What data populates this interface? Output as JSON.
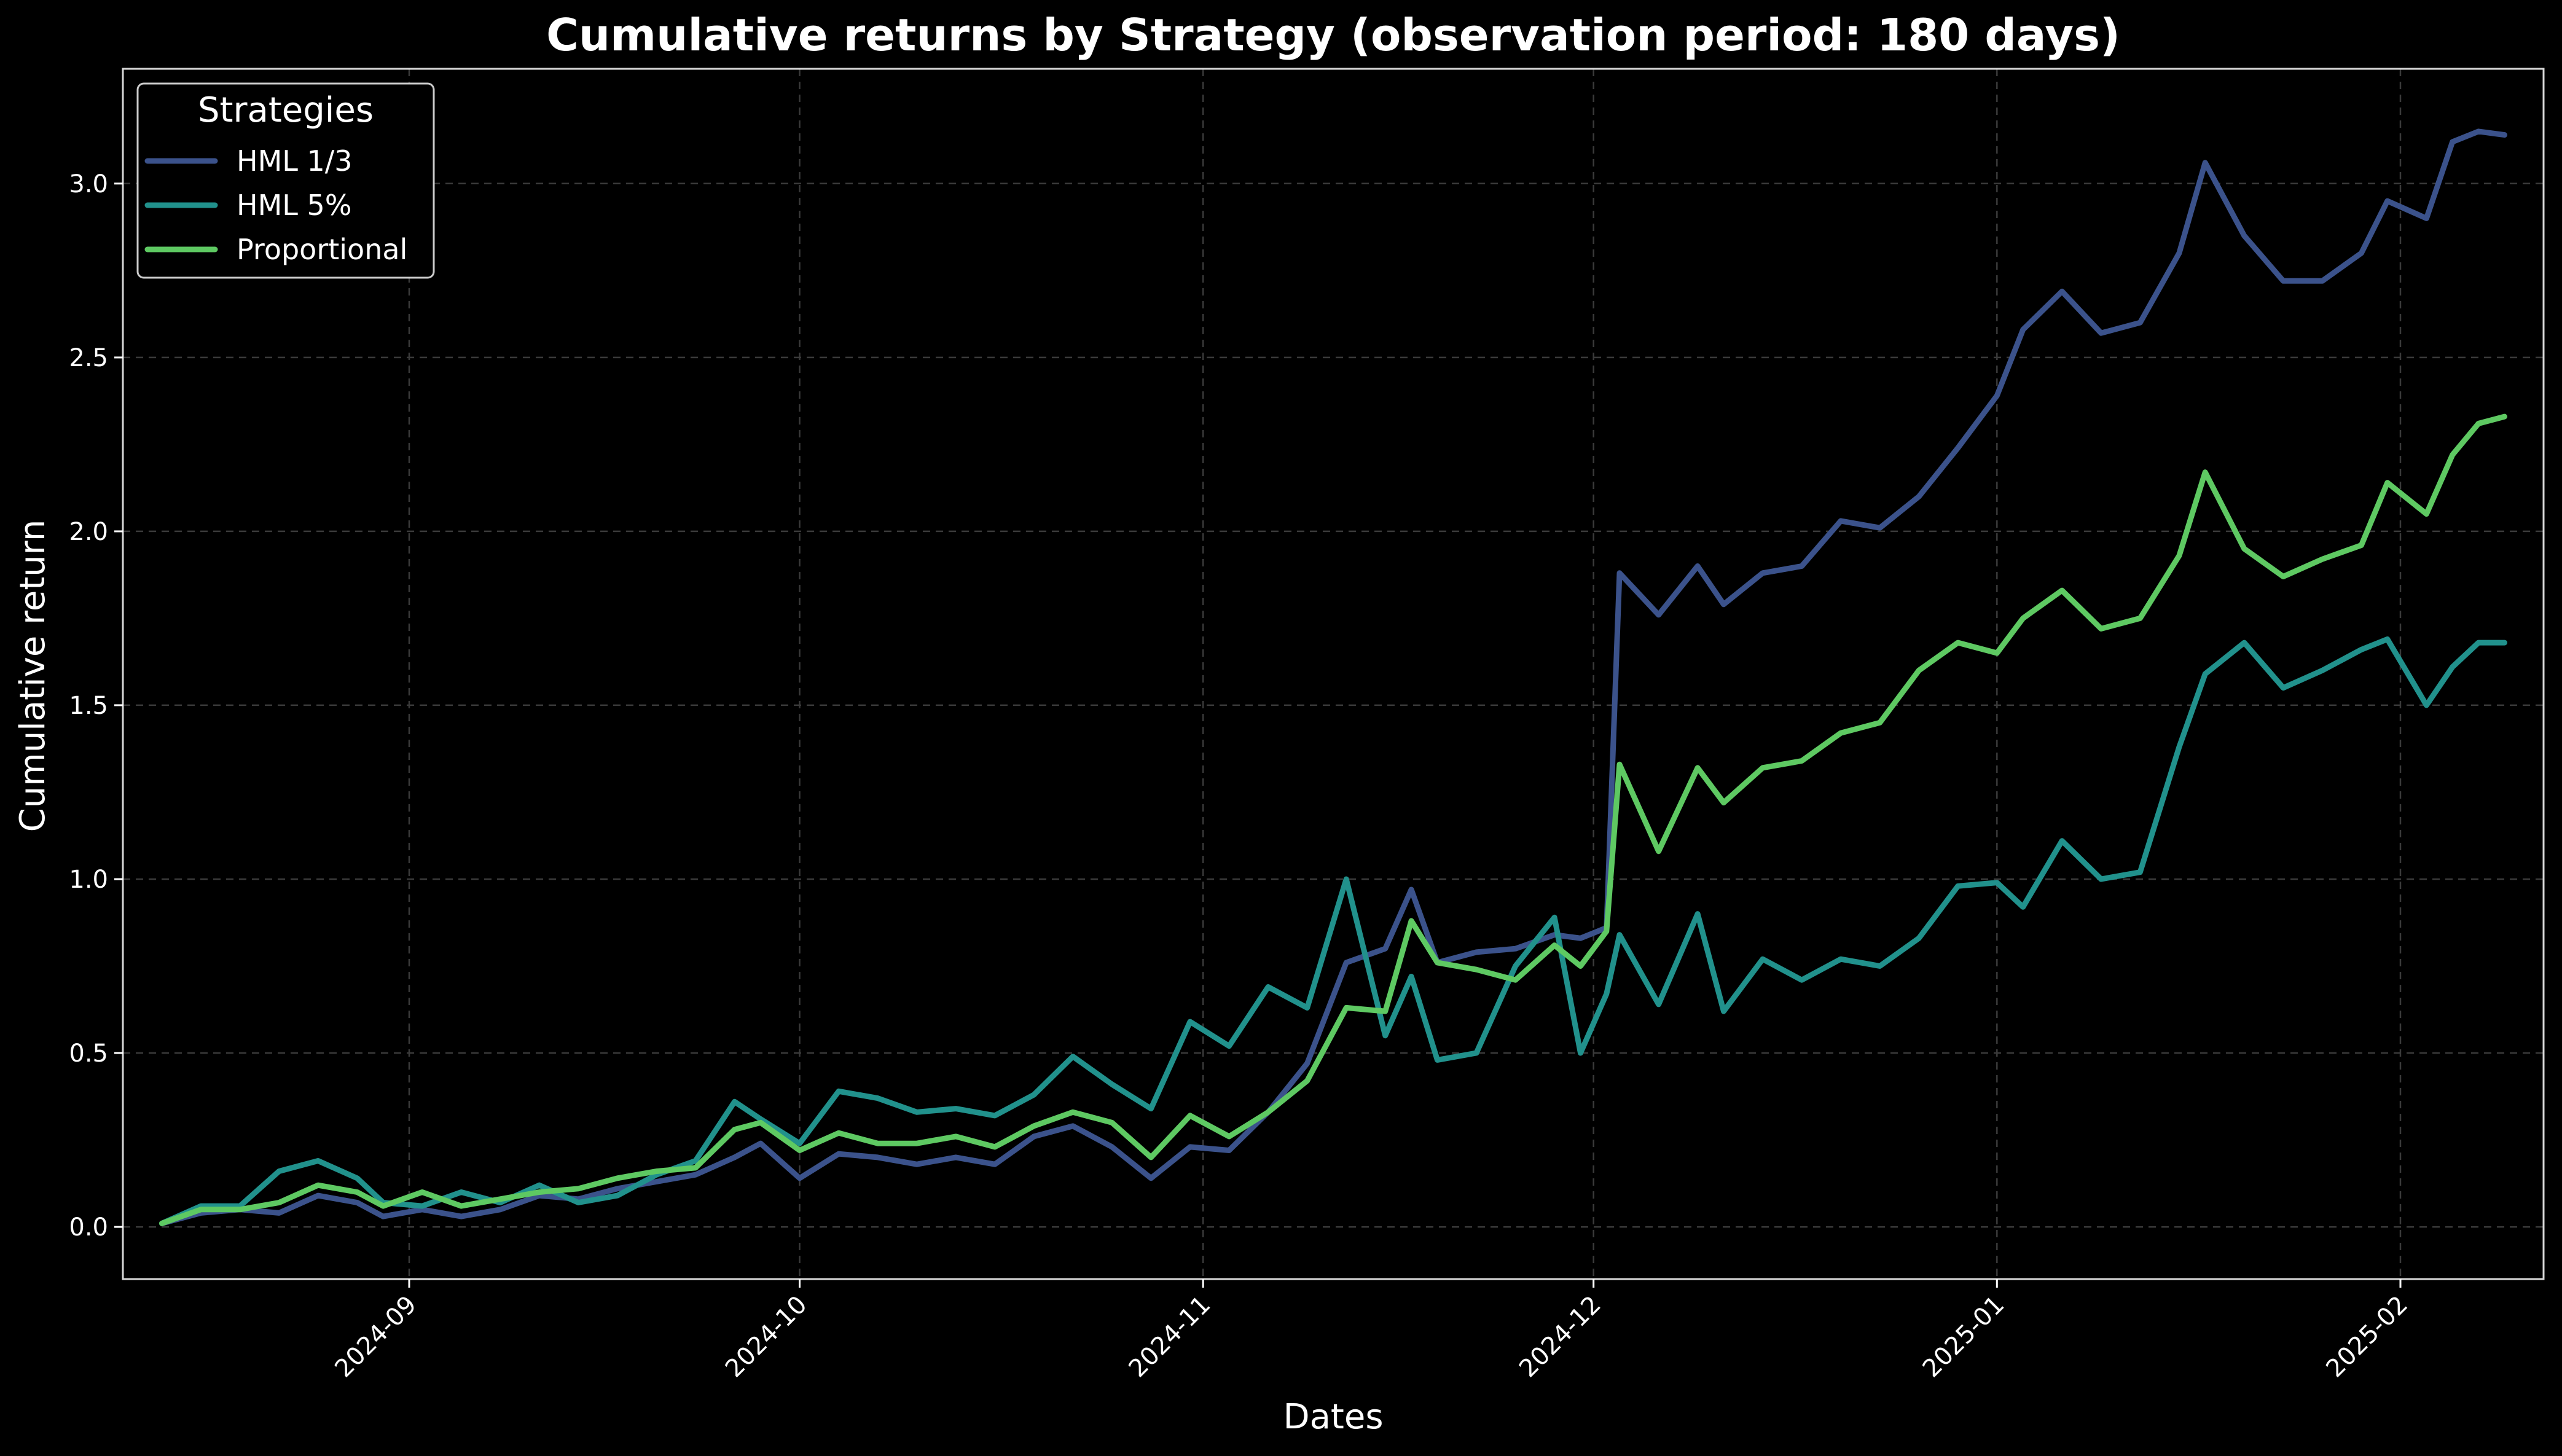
{
  "chart_data": {
    "type": "line",
    "title": "Cumulative returns by Strategy (observation period: 180 days)",
    "xlabel": "Dates",
    "ylabel": "Cumulative return",
    "x_range": [
      "2024-08-10",
      "2025-02-12"
    ],
    "ylim": [
      -0.15,
      3.33
    ],
    "grid": true,
    "legend": {
      "title": "Strategies",
      "placement": "top-left"
    },
    "x_ticks": [
      "2024-09-01",
      "2024-10-01",
      "2024-11-01",
      "2024-12-01",
      "2025-01-01",
      "2025-02-01"
    ],
    "x_tick_labels": [
      "2024-09",
      "2024-10",
      "2024-11",
      "2024-12",
      "2025-01",
      "2025-02"
    ],
    "y_ticks": [
      0.0,
      0.5,
      1.0,
      1.5,
      2.0,
      2.5,
      3.0
    ],
    "y_tick_labels": [
      "0.0",
      "0.5",
      "1.0",
      "1.5",
      "2.0",
      "2.5",
      "3.0"
    ],
    "series": [
      {
        "name": "HML 1/3",
        "color": "#3b528b",
        "points": [
          [
            "2024-08-13",
            0.01
          ],
          [
            "2024-08-16",
            0.04
          ],
          [
            "2024-08-19",
            0.05
          ],
          [
            "2024-08-22",
            0.04
          ],
          [
            "2024-08-25",
            0.09
          ],
          [
            "2024-08-28",
            0.07
          ],
          [
            "2024-08-30",
            0.03
          ],
          [
            "2024-09-02",
            0.05
          ],
          [
            "2024-09-05",
            0.03
          ],
          [
            "2024-09-08",
            0.05
          ],
          [
            "2024-09-11",
            0.09
          ],
          [
            "2024-09-14",
            0.08
          ],
          [
            "2024-09-17",
            0.11
          ],
          [
            "2024-09-20",
            0.13
          ],
          [
            "2024-09-23",
            0.15
          ],
          [
            "2024-09-26",
            0.2
          ],
          [
            "2024-09-28",
            0.24
          ],
          [
            "2024-10-01",
            0.14
          ],
          [
            "2024-10-04",
            0.21
          ],
          [
            "2024-10-07",
            0.2
          ],
          [
            "2024-10-10",
            0.18
          ],
          [
            "2024-10-13",
            0.2
          ],
          [
            "2024-10-16",
            0.18
          ],
          [
            "2024-10-19",
            0.26
          ],
          [
            "2024-10-22",
            0.29
          ],
          [
            "2024-10-25",
            0.23
          ],
          [
            "2024-10-28",
            0.14
          ],
          [
            "2024-10-31",
            0.23
          ],
          [
            "2024-11-03",
            0.22
          ],
          [
            "2024-11-06",
            0.33
          ],
          [
            "2024-11-09",
            0.47
          ],
          [
            "2024-11-12",
            0.76
          ],
          [
            "2024-11-15",
            0.8
          ],
          [
            "2024-11-17",
            0.97
          ],
          [
            "2024-11-19",
            0.76
          ],
          [
            "2024-11-22",
            0.79
          ],
          [
            "2024-11-25",
            0.8
          ],
          [
            "2024-11-28",
            0.84
          ],
          [
            "2024-11-30",
            0.83
          ],
          [
            "2024-12-02",
            0.86
          ],
          [
            "2024-12-03",
            1.88
          ],
          [
            "2024-12-06",
            1.76
          ],
          [
            "2024-12-09",
            1.9
          ],
          [
            "2024-12-11",
            1.79
          ],
          [
            "2024-12-14",
            1.88
          ],
          [
            "2024-12-17",
            1.9
          ],
          [
            "2024-12-20",
            2.03
          ],
          [
            "2024-12-23",
            2.01
          ],
          [
            "2024-12-26",
            2.1
          ],
          [
            "2024-12-29",
            2.24
          ],
          [
            "2025-01-01",
            2.39
          ],
          [
            "2025-01-03",
            2.58
          ],
          [
            "2025-01-06",
            2.69
          ],
          [
            "2025-01-09",
            2.57
          ],
          [
            "2025-01-12",
            2.6
          ],
          [
            "2025-01-15",
            2.8
          ],
          [
            "2025-01-17",
            3.06
          ],
          [
            "2025-01-20",
            2.85
          ],
          [
            "2025-01-23",
            2.72
          ],
          [
            "2025-01-26",
            2.72
          ],
          [
            "2025-01-29",
            2.8
          ],
          [
            "2025-01-31",
            2.95
          ],
          [
            "2025-02-03",
            2.9
          ],
          [
            "2025-02-05",
            3.12
          ],
          [
            "2025-02-07",
            3.15
          ],
          [
            "2025-02-09",
            3.14
          ]
        ]
      },
      {
        "name": "HML 5%",
        "color": "#21918c",
        "points": [
          [
            "2024-08-13",
            0.01
          ],
          [
            "2024-08-16",
            0.06
          ],
          [
            "2024-08-19",
            0.06
          ],
          [
            "2024-08-22",
            0.16
          ],
          [
            "2024-08-25",
            0.19
          ],
          [
            "2024-08-28",
            0.14
          ],
          [
            "2024-08-30",
            0.07
          ],
          [
            "2024-09-02",
            0.06
          ],
          [
            "2024-09-05",
            0.1
          ],
          [
            "2024-09-08",
            0.07
          ],
          [
            "2024-09-11",
            0.12
          ],
          [
            "2024-09-14",
            0.07
          ],
          [
            "2024-09-17",
            0.09
          ],
          [
            "2024-09-20",
            0.15
          ],
          [
            "2024-09-23",
            0.19
          ],
          [
            "2024-09-26",
            0.36
          ],
          [
            "2024-09-28",
            0.31
          ],
          [
            "2024-10-01",
            0.24
          ],
          [
            "2024-10-04",
            0.39
          ],
          [
            "2024-10-07",
            0.37
          ],
          [
            "2024-10-10",
            0.33
          ],
          [
            "2024-10-13",
            0.34
          ],
          [
            "2024-10-16",
            0.32
          ],
          [
            "2024-10-19",
            0.38
          ],
          [
            "2024-10-22",
            0.49
          ],
          [
            "2024-10-25",
            0.41
          ],
          [
            "2024-10-28",
            0.34
          ],
          [
            "2024-10-31",
            0.59
          ],
          [
            "2024-11-03",
            0.52
          ],
          [
            "2024-11-06",
            0.69
          ],
          [
            "2024-11-09",
            0.63
          ],
          [
            "2024-11-12",
            1.0
          ],
          [
            "2024-11-15",
            0.55
          ],
          [
            "2024-11-17",
            0.72
          ],
          [
            "2024-11-19",
            0.48
          ],
          [
            "2024-11-22",
            0.5
          ],
          [
            "2024-11-25",
            0.75
          ],
          [
            "2024-11-28",
            0.89
          ],
          [
            "2024-11-30",
            0.5
          ],
          [
            "2024-12-02",
            0.67
          ],
          [
            "2024-12-03",
            0.84
          ],
          [
            "2024-12-06",
            0.64
          ],
          [
            "2024-12-09",
            0.9
          ],
          [
            "2024-12-11",
            0.62
          ],
          [
            "2024-12-14",
            0.77
          ],
          [
            "2024-12-17",
            0.71
          ],
          [
            "2024-12-20",
            0.77
          ],
          [
            "2024-12-23",
            0.75
          ],
          [
            "2024-12-26",
            0.83
          ],
          [
            "2024-12-29",
            0.98
          ],
          [
            "2025-01-01",
            0.99
          ],
          [
            "2025-01-03",
            0.92
          ],
          [
            "2025-01-06",
            1.11
          ],
          [
            "2025-01-09",
            1.0
          ],
          [
            "2025-01-12",
            1.02
          ],
          [
            "2025-01-15",
            1.38
          ],
          [
            "2025-01-17",
            1.59
          ],
          [
            "2025-01-20",
            1.68
          ],
          [
            "2025-01-23",
            1.55
          ],
          [
            "2025-01-26",
            1.6
          ],
          [
            "2025-01-29",
            1.66
          ],
          [
            "2025-01-31",
            1.69
          ],
          [
            "2025-02-03",
            1.5
          ],
          [
            "2025-02-05",
            1.61
          ],
          [
            "2025-02-07",
            1.68
          ],
          [
            "2025-02-09",
            1.68
          ]
        ]
      },
      {
        "name": "Proportional",
        "color": "#5ec962",
        "points": [
          [
            "2024-08-13",
            0.01
          ],
          [
            "2024-08-16",
            0.05
          ],
          [
            "2024-08-19",
            0.05
          ],
          [
            "2024-08-22",
            0.07
          ],
          [
            "2024-08-25",
            0.12
          ],
          [
            "2024-08-28",
            0.1
          ],
          [
            "2024-08-30",
            0.06
          ],
          [
            "2024-09-02",
            0.1
          ],
          [
            "2024-09-05",
            0.06
          ],
          [
            "2024-09-08",
            0.08
          ],
          [
            "2024-09-11",
            0.1
          ],
          [
            "2024-09-14",
            0.11
          ],
          [
            "2024-09-17",
            0.14
          ],
          [
            "2024-09-20",
            0.16
          ],
          [
            "2024-09-23",
            0.17
          ],
          [
            "2024-09-26",
            0.28
          ],
          [
            "2024-09-28",
            0.3
          ],
          [
            "2024-10-01",
            0.22
          ],
          [
            "2024-10-04",
            0.27
          ],
          [
            "2024-10-07",
            0.24
          ],
          [
            "2024-10-10",
            0.24
          ],
          [
            "2024-10-13",
            0.26
          ],
          [
            "2024-10-16",
            0.23
          ],
          [
            "2024-10-19",
            0.29
          ],
          [
            "2024-10-22",
            0.33
          ],
          [
            "2024-10-25",
            0.3
          ],
          [
            "2024-10-28",
            0.2
          ],
          [
            "2024-10-31",
            0.32
          ],
          [
            "2024-11-03",
            0.26
          ],
          [
            "2024-11-06",
            0.33
          ],
          [
            "2024-11-09",
            0.42
          ],
          [
            "2024-11-12",
            0.63
          ],
          [
            "2024-11-15",
            0.62
          ],
          [
            "2024-11-17",
            0.88
          ],
          [
            "2024-11-19",
            0.76
          ],
          [
            "2024-11-22",
            0.74
          ],
          [
            "2024-11-25",
            0.71
          ],
          [
            "2024-11-28",
            0.81
          ],
          [
            "2024-11-30",
            0.75
          ],
          [
            "2024-12-02",
            0.85
          ],
          [
            "2024-12-03",
            1.33
          ],
          [
            "2024-12-06",
            1.08
          ],
          [
            "2024-12-09",
            1.32
          ],
          [
            "2024-12-11",
            1.22
          ],
          [
            "2024-12-14",
            1.32
          ],
          [
            "2024-12-17",
            1.34
          ],
          [
            "2024-12-20",
            1.42
          ],
          [
            "2024-12-23",
            1.45
          ],
          [
            "2024-12-26",
            1.6
          ],
          [
            "2024-12-29",
            1.68
          ],
          [
            "2025-01-01",
            1.65
          ],
          [
            "2025-01-03",
            1.75
          ],
          [
            "2025-01-06",
            1.83
          ],
          [
            "2025-01-09",
            1.72
          ],
          [
            "2025-01-12",
            1.75
          ],
          [
            "2025-01-15",
            1.93
          ],
          [
            "2025-01-17",
            2.17
          ],
          [
            "2025-01-20",
            1.95
          ],
          [
            "2025-01-23",
            1.87
          ],
          [
            "2025-01-26",
            1.92
          ],
          [
            "2025-01-29",
            1.96
          ],
          [
            "2025-01-31",
            2.14
          ],
          [
            "2025-02-03",
            2.05
          ],
          [
            "2025-02-05",
            2.22
          ],
          [
            "2025-02-07",
            2.31
          ],
          [
            "2025-02-09",
            2.33
          ]
        ]
      }
    ]
  },
  "colors": {
    "background": "#000000",
    "foreground": "#ffffff",
    "grid": "#3a3a3a",
    "frame": "#d8d8d8",
    "legend_background": "#000000",
    "legend_border": "#cccccc"
  }
}
